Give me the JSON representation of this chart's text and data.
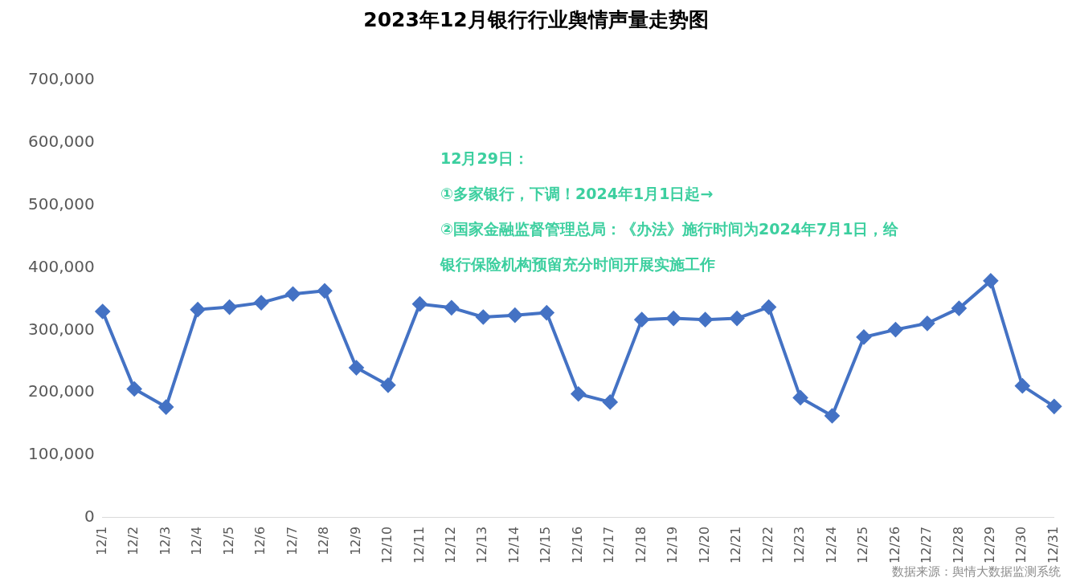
{
  "chart_data": {
    "type": "line",
    "title": "2023年12月银行行业舆情声量走势图",
    "categories": [
      "12/1",
      "12/2",
      "12/3",
      "12/4",
      "12/5",
      "12/6",
      "12/7",
      "12/8",
      "12/9",
      "12/10",
      "12/11",
      "12/12",
      "12/13",
      "12/14",
      "12/15",
      "12/16",
      "12/17",
      "12/18",
      "12/19",
      "12/20",
      "12/21",
      "12/22",
      "12/23",
      "12/24",
      "12/25",
      "12/26",
      "12/27",
      "12/28",
      "12/29",
      "12/30",
      "12/31"
    ],
    "series": [
      {
        "color": "#4472c4",
        "values": [
          330000,
          206000,
          177000,
          333000,
          337000,
          344000,
          358000,
          363000,
          240000,
          212000,
          342000,
          336000,
          321000,
          324000,
          328000,
          198000,
          185000,
          317000,
          319000,
          317000,
          319000,
          337000,
          192000,
          163000,
          289000,
          301000,
          311000,
          335000,
          379000,
          211000,
          178000
        ]
      }
    ],
    "ylim": [
      0,
      700000
    ],
    "yticks": [
      {
        "value": 0,
        "label": "0"
      },
      {
        "value": 100000,
        "label": "100,000"
      },
      {
        "value": 200000,
        "label": "200,000"
      },
      {
        "value": 300000,
        "label": "300,000"
      },
      {
        "value": 400000,
        "label": "400,000"
      },
      {
        "value": 500000,
        "label": "500,000"
      },
      {
        "value": 600000,
        "label": "600,000"
      },
      {
        "value": 700000,
        "label": "700,000"
      }
    ],
    "grid": false,
    "legend": false,
    "marker": "diamond",
    "line_style": "solid",
    "annotations": [
      "12月29日：",
      "①多家银行，下调！2024年1月1日起→",
      "②国家金融监督管理总局：《办法》施行时间为2024年7月1日，给",
      "银行保险机构预留充分时间开展实施工作",
      "数据来源：舆情大数据监测系统"
    ]
  }
}
